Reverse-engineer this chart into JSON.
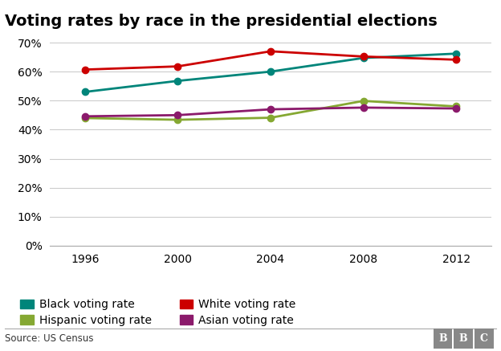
{
  "title": "Voting rates by race in the presidential elections",
  "years": [
    1996,
    2000,
    2004,
    2008,
    2012
  ],
  "series": [
    {
      "label": "Black voting rate",
      "color": "#00857a",
      "values": [
        53,
        56.8,
        60,
        64.7,
        66.2
      ]
    },
    {
      "label": "White voting rate",
      "color": "#cc0000",
      "values": [
        60.7,
        61.8,
        67,
        65.2,
        64.1
      ]
    },
    {
      "label": "Hispanic voting rate",
      "color": "#85a832",
      "values": [
        44.0,
        43.4,
        44.1,
        49.9,
        48.0
      ]
    },
    {
      "label": "Asian voting rate",
      "color": "#8b1a6b",
      "values": [
        44.6,
        45.0,
        47.0,
        47.6,
        47.3
      ]
    }
  ],
  "ylim": [
    0,
    75
  ],
  "yticks": [
    0,
    10,
    20,
    30,
    40,
    50,
    60,
    70
  ],
  "source_text": "Source: US Census",
  "bbc_label": "BBC",
  "background_color": "#ffffff",
  "grid_color": "#cccccc",
  "title_fontsize": 14,
  "legend_fontsize": 10,
  "axis_fontsize": 10,
  "marker": "o",
  "markersize": 6,
  "linewidth": 2.0
}
